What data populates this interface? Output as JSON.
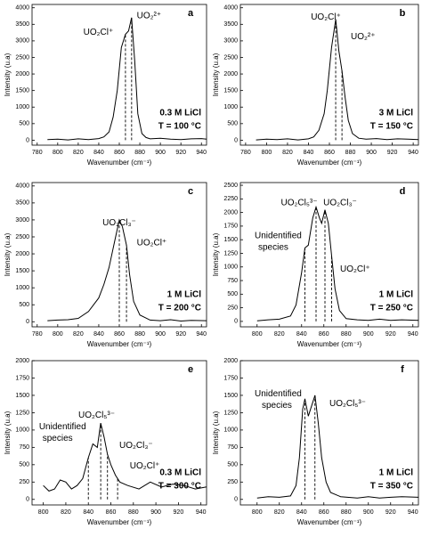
{
  "chart_data": [
    {
      "type": "line",
      "label": "a",
      "xlabel": "Wavenumber (cm⁻¹)",
      "ylabel": "Intensity (u.a)",
      "color": "#000000",
      "x": [
        790,
        800,
        810,
        820,
        830,
        840,
        845,
        850,
        854,
        858,
        862,
        866,
        869,
        872,
        875,
        878,
        882,
        886,
        890,
        900,
        910,
        920,
        930,
        940,
        945
      ],
      "values": [
        20,
        30,
        10,
        40,
        20,
        50,
        100,
        250,
        700,
        1500,
        2800,
        3200,
        3300,
        3700,
        2400,
        800,
        200,
        80,
        40,
        60,
        30,
        20,
        40,
        50,
        30
      ],
      "xlim": [
        775,
        945
      ],
      "xticks": [
        780,
        800,
        820,
        840,
        860,
        880,
        900,
        920,
        940
      ],
      "ylim": [
        -150,
        4100
      ],
      "yticks": [
        0,
        500,
        1000,
        1500,
        2000,
        2500,
        3000,
        3500,
        4000
      ],
      "vlines": [
        866,
        872
      ],
      "annotations": [
        "UO₂Cl⁺",
        "UO₂²⁺"
      ],
      "conditions": [
        "0.3 M LiCl",
        "T = 100 °C"
      ]
    },
    {
      "type": "line",
      "label": "b",
      "xlabel": "Wavenumber (cm⁻¹)",
      "ylabel": "Intensity (u.a)",
      "color": "#000000",
      "x": [
        790,
        800,
        810,
        820,
        830,
        840,
        845,
        850,
        855,
        858,
        862,
        866,
        869,
        872,
        875,
        878,
        882,
        888,
        895,
        905,
        915,
        925,
        935,
        945
      ],
      "values": [
        10,
        30,
        20,
        40,
        10,
        40,
        100,
        300,
        800,
        1500,
        2800,
        3650,
        2700,
        2100,
        1300,
        600,
        200,
        60,
        30,
        50,
        20,
        40,
        30,
        20
      ],
      "xlim": [
        775,
        945
      ],
      "xticks": [
        780,
        800,
        820,
        840,
        860,
        880,
        900,
        920,
        940
      ],
      "ylim": [
        -150,
        4100
      ],
      "yticks": [
        0,
        500,
        1000,
        1500,
        2000,
        2500,
        3000,
        3500,
        4000
      ],
      "vlines": [
        866,
        872
      ],
      "annotations": [
        "UO₂Cl⁺",
        "UO₂²⁺"
      ],
      "conditions": [
        "3 M LiCl",
        "T = 150 °C"
      ]
    },
    {
      "type": "line",
      "label": "c",
      "xlabel": "Wavenumber (cm⁻¹)",
      "ylabel": "Intensity (u.a)",
      "color": "#000000",
      "x": [
        790,
        800,
        810,
        820,
        830,
        840,
        845,
        850,
        855,
        860,
        863,
        867,
        870,
        874,
        880,
        890,
        900,
        910,
        920,
        930,
        945
      ],
      "values": [
        30,
        50,
        60,
        100,
        300,
        700,
        1100,
        1600,
        2300,
        3000,
        2800,
        2250,
        1400,
        600,
        200,
        50,
        30,
        60,
        20,
        40,
        30
      ],
      "xlim": [
        775,
        945
      ],
      "xticks": [
        780,
        800,
        820,
        840,
        860,
        880,
        900,
        920,
        940
      ],
      "ylim": [
        -150,
        4100
      ],
      "yticks": [
        0,
        500,
        1000,
        1500,
        2000,
        2500,
        3000,
        3500,
        4000
      ],
      "vlines": [
        860,
        867
      ],
      "annotations": [
        "UO₂Cl₃⁻",
        "UO₂Cl⁺"
      ],
      "conditions": [
        "1 M LiCl",
        "T = 200 °C"
      ]
    },
    {
      "type": "line",
      "label": "d",
      "xlabel": "Wavenumber (cm⁻¹)",
      "ylabel": "Intensity (u.a)",
      "color": "#000000",
      "x": [
        800,
        810,
        820,
        830,
        835,
        840,
        843,
        846,
        850,
        853,
        856,
        858,
        861,
        864,
        867,
        870,
        874,
        880,
        890,
        900,
        910,
        920,
        930,
        945
      ],
      "values": [
        10,
        30,
        40,
        100,
        300,
        900,
        1350,
        1400,
        1900,
        2100,
        1900,
        1800,
        2050,
        1800,
        1200,
        600,
        200,
        50,
        30,
        20,
        40,
        20,
        30,
        20
      ],
      "xlim": [
        785,
        945
      ],
      "xticks": [
        800,
        820,
        840,
        860,
        880,
        900,
        920,
        940
      ],
      "ylim": [
        -100,
        2550
      ],
      "yticks": [
        0,
        250,
        500,
        750,
        1000,
        1250,
        1500,
        1750,
        2000,
        2250,
        2500
      ],
      "vlines": [
        843,
        853,
        861,
        867
      ],
      "annotations": [
        "Unidentified",
        "species",
        "UO₂Cl₅³⁻",
        "UO₂Cl₃⁻",
        "UO₂Cl⁺"
      ],
      "conditions": [
        "1 M LiCl",
        "T = 250 °C"
      ]
    },
    {
      "type": "line",
      "label": "e",
      "xlabel": "Wavenumber (cm⁻¹)",
      "ylabel": "Intensity (u.a)",
      "color": "#000000",
      "x": [
        800,
        805,
        810,
        815,
        820,
        825,
        830,
        835,
        840,
        844,
        848,
        851,
        854,
        857,
        860,
        864,
        868,
        875,
        885,
        895,
        905,
        915,
        925,
        935,
        945
      ],
      "values": [
        200,
        120,
        150,
        280,
        250,
        150,
        200,
        300,
        600,
        800,
        750,
        1100,
        900,
        650,
        500,
        350,
        250,
        200,
        150,
        250,
        180,
        220,
        200,
        150,
        180
      ],
      "xlim": [
        790,
        945
      ],
      "xticks": [
        800,
        820,
        840,
        860,
        880,
        900,
        920,
        940
      ],
      "ylim": [
        -80,
        2000
      ],
      "yticks": [
        0,
        250,
        500,
        750,
        1000,
        1250,
        1500,
        1750,
        2000
      ],
      "vlines": [
        840,
        851,
        857,
        866
      ],
      "annotations": [
        "Unidentified",
        "species",
        "UO₂Cl₅³⁻",
        "UO₂Cl₃⁻",
        "UO₂Cl⁺"
      ],
      "conditions": [
        "0.3 M LiCl",
        "T = 300 °C"
      ]
    },
    {
      "type": "line",
      "label": "f",
      "xlabel": "Wavenumber (cm⁻¹)",
      "ylabel": "Intensity (u.a)",
      "color": "#000000",
      "x": [
        800,
        810,
        820,
        830,
        835,
        838,
        841,
        843,
        846,
        850,
        852,
        855,
        858,
        862,
        866,
        875,
        890,
        900,
        910,
        920,
        930,
        945
      ],
      "values": [
        20,
        40,
        30,
        50,
        200,
        600,
        1300,
        1450,
        1200,
        1400,
        1500,
        1100,
        600,
        250,
        100,
        40,
        20,
        40,
        20,
        30,
        40,
        30
      ],
      "xlim": [
        785,
        945
      ],
      "xticks": [
        800,
        820,
        840,
        860,
        880,
        900,
        920,
        940
      ],
      "ylim": [
        -80,
        2000
      ],
      "yticks": [
        0,
        250,
        500,
        750,
        1000,
        1250,
        1500,
        1750,
        2000
      ],
      "vlines": [
        843,
        852
      ],
      "annotations": [
        "Unidentified",
        "species",
        "UO₂Cl₅³⁻"
      ],
      "conditions": [
        "1 M LiCl",
        "T = 350 °C"
      ]
    }
  ]
}
